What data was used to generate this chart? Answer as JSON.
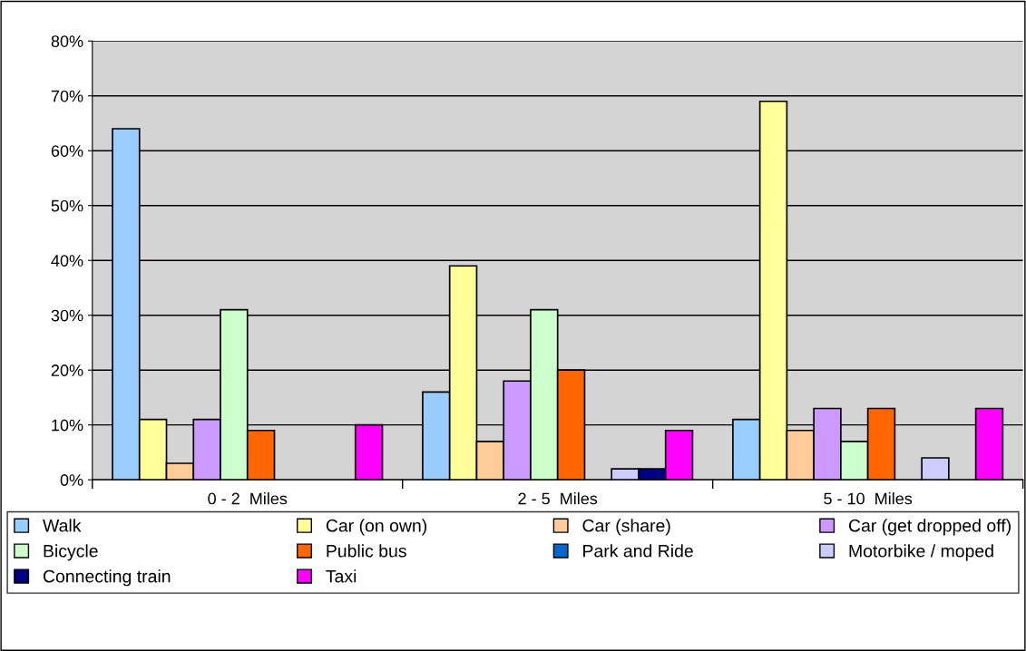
{
  "chart_data": {
    "type": "bar",
    "categories": [
      "0 - 2  Miles",
      "2 - 5  Miles",
      "5 - 10  Miles"
    ],
    "ylim": [
      0,
      0.8
    ],
    "yticks": [
      {
        "value": 0,
        "label": "0%"
      },
      {
        "value": 0.1,
        "label": "10%"
      },
      {
        "value": 0.2,
        "label": "20%"
      },
      {
        "value": 0.3,
        "label": "30%"
      },
      {
        "value": 0.4,
        "label": "40%"
      },
      {
        "value": 0.5,
        "label": "50%"
      },
      {
        "value": 0.6,
        "label": "60%"
      },
      {
        "value": 0.7,
        "label": "70%"
      },
      {
        "value": 0.8,
        "label": "80%"
      }
    ],
    "grid": "y",
    "legend": "bottom",
    "series": [
      {
        "name": "Walk",
        "color": "#99ccff",
        "values": [
          0.64,
          0.16,
          0.11
        ]
      },
      {
        "name": "Car (on own)",
        "color": "#ffff99",
        "values": [
          0.11,
          0.39,
          0.69
        ]
      },
      {
        "name": "Car (share)",
        "color": "#ffcc99",
        "values": [
          0.03,
          0.07,
          0.09
        ]
      },
      {
        "name": "Car (get dropped off)",
        "color": "#cc99ff",
        "values": [
          0.11,
          0.18,
          0.13
        ]
      },
      {
        "name": "Bicycle",
        "color": "#ccffcc",
        "values": [
          0.31,
          0.31,
          0.07
        ]
      },
      {
        "name": "Public bus",
        "color": "#ff6600",
        "values": [
          0.09,
          0.2,
          0.13
        ]
      },
      {
        "name": "Park and Ride",
        "color": "#0066cc",
        "values": [
          null,
          null,
          null
        ]
      },
      {
        "name": "Motorbike / moped",
        "color": "#ccccff",
        "values": [
          null,
          0.02,
          0.04
        ]
      },
      {
        "name": "Connecting train",
        "color": "#000080",
        "values": [
          null,
          0.02,
          null
        ]
      },
      {
        "name": "Taxi",
        "color": "#ff00ff",
        "values": [
          0.1,
          0.09,
          0.13
        ]
      }
    ]
  }
}
